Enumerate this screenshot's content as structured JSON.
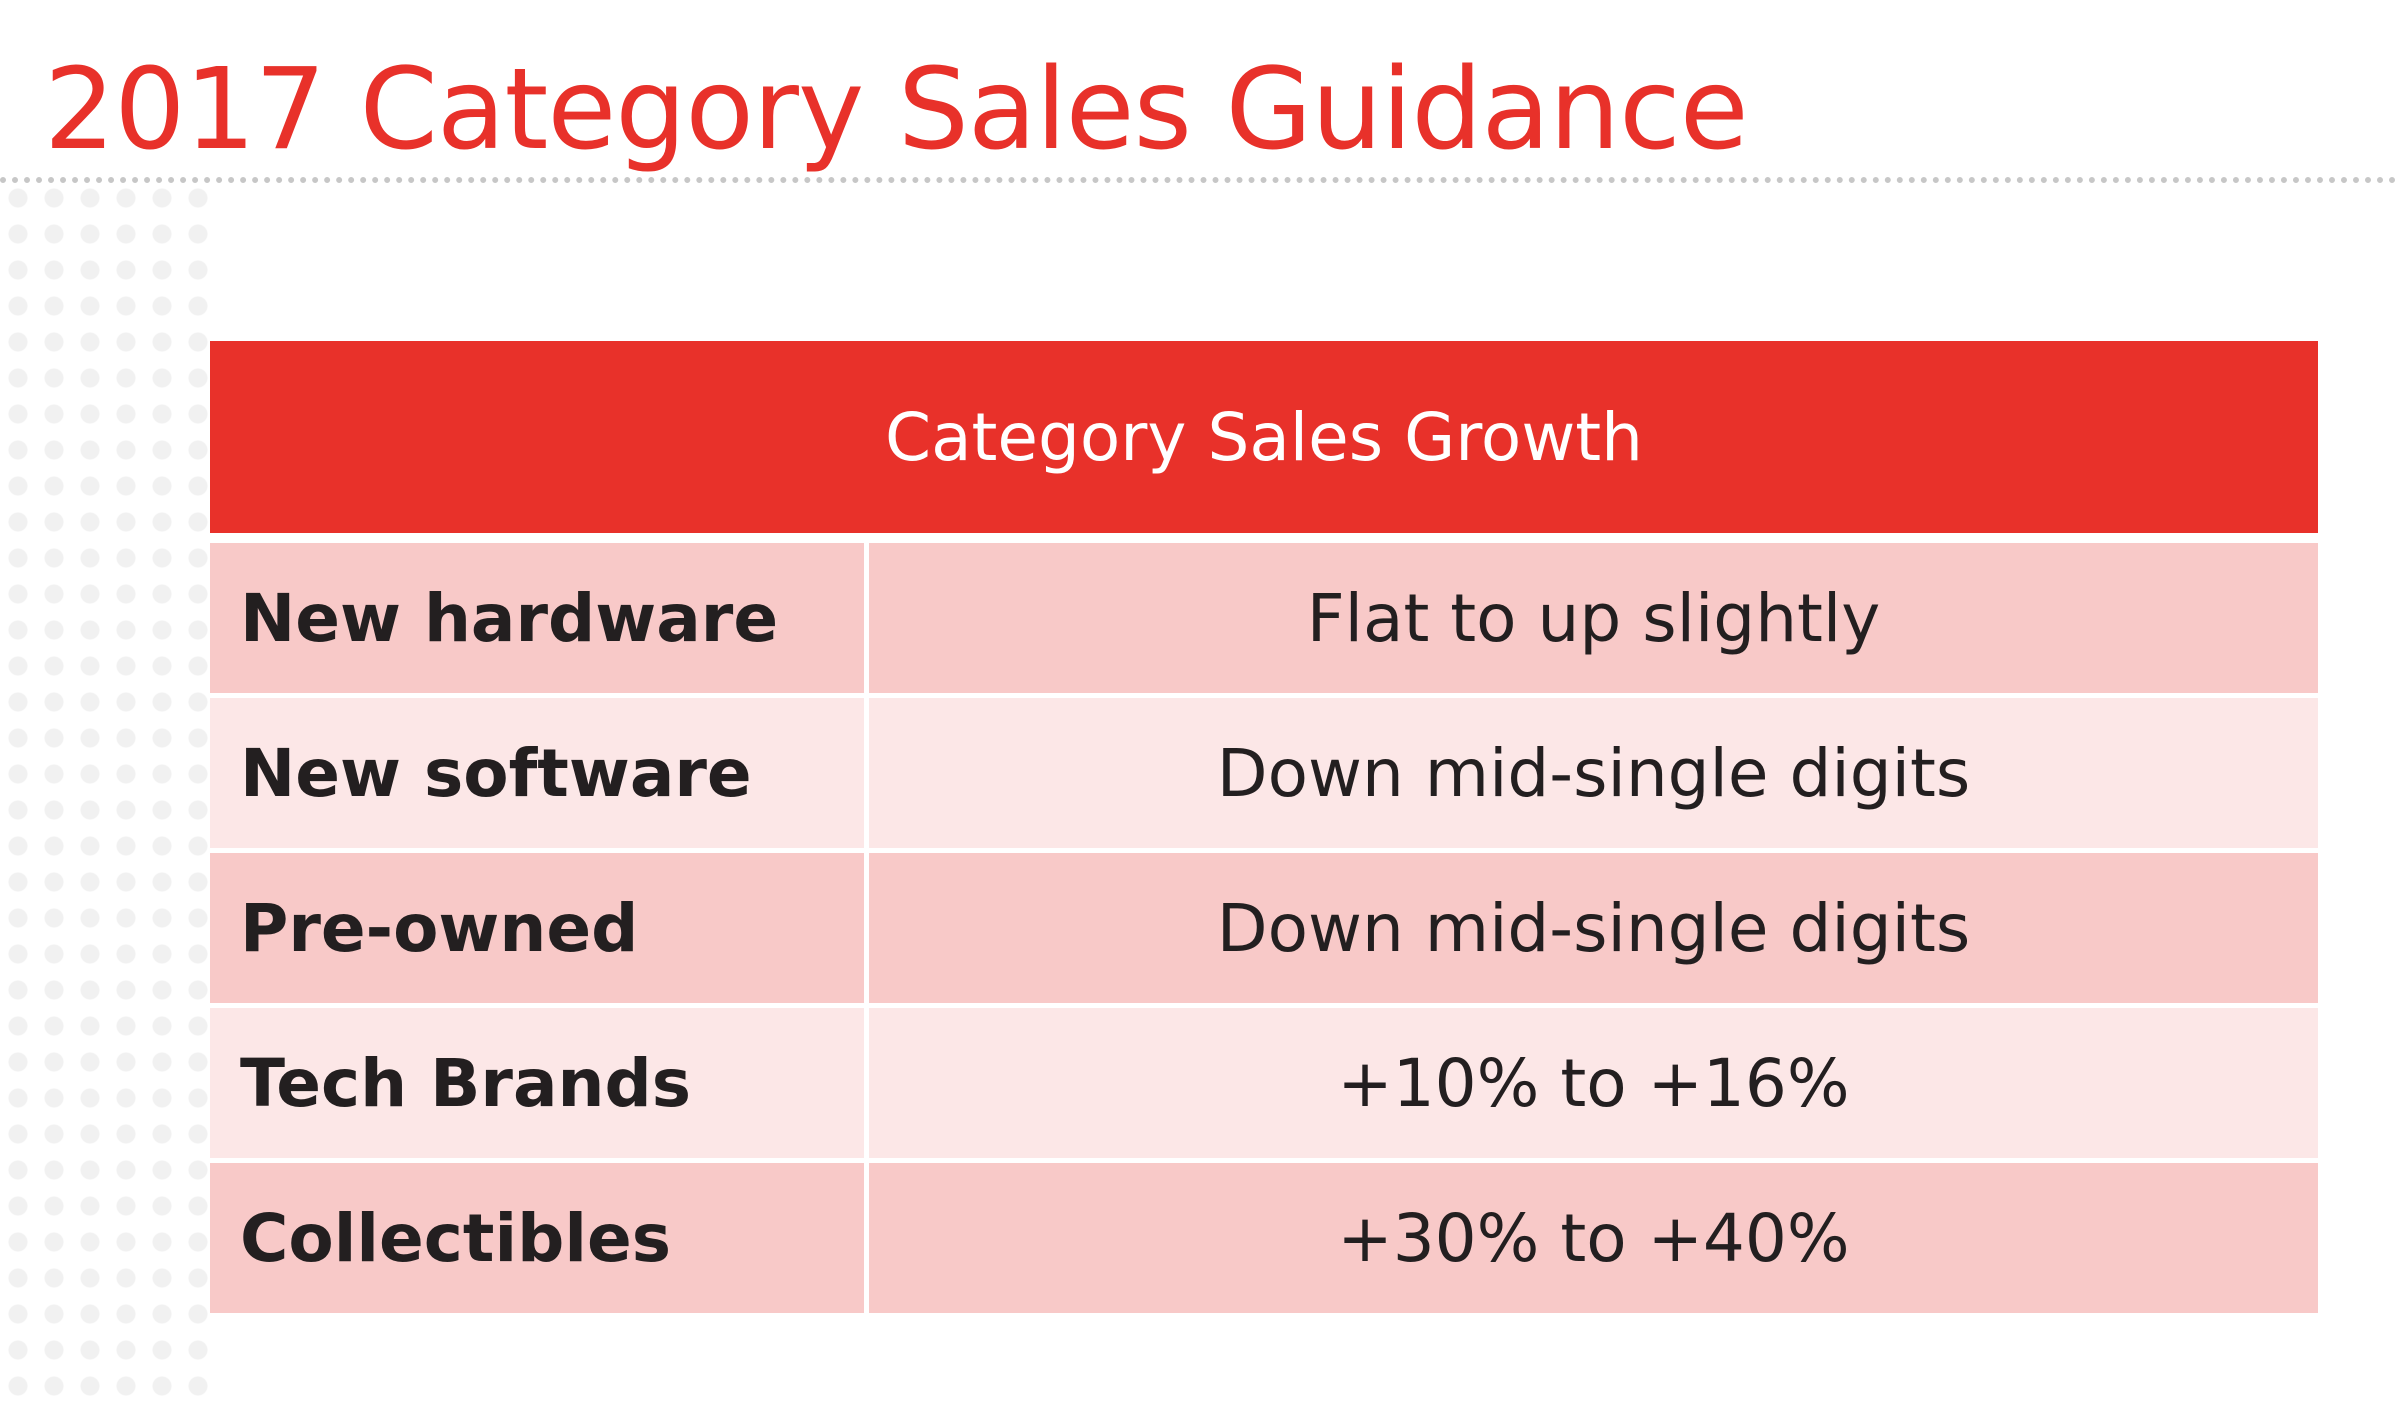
{
  "slide": {
    "title": "2017 Category Sales Guidance"
  },
  "table": {
    "header": "Category Sales Growth",
    "rows": [
      {
        "category": "New hardware",
        "guidance": "Flat to up slightly"
      },
      {
        "category": "New software",
        "guidance": "Down mid-single digits"
      },
      {
        "category": "Pre-owned",
        "guidance": "Down mid-single digits"
      },
      {
        "category": "Tech Brands",
        "guidance": "+10% to +16%"
      },
      {
        "category": "Collectibles",
        "guidance": "+30% to +40%"
      }
    ]
  },
  "colors": {
    "accent_red": "#e8312a",
    "row_dark": "#f8c9c8",
    "row_light": "#fce7e7",
    "text_dark": "#231f20"
  }
}
